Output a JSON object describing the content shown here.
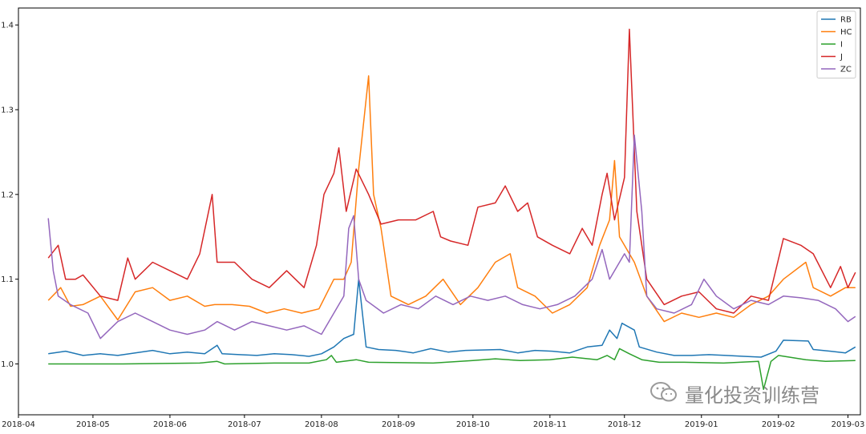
{
  "chart_data": {
    "type": "line",
    "title": "",
    "xlabel": "",
    "ylabel": "",
    "x_ticks": [
      "2018-04",
      "2018-05",
      "2018-06",
      "2018-07",
      "2018-08",
      "2018-09",
      "2018-10",
      "2018-11",
      "2018-12",
      "2019-01",
      "2019-02",
      "2019-03"
    ],
    "y_ticks": [
      "1.0",
      "1.1",
      "1.2",
      "1.3",
      "1.4"
    ],
    "xlim": [
      "2018-04-01",
      "2019-03-06"
    ],
    "ylim": [
      0.94,
      1.42
    ],
    "grid": false,
    "legend_position": "top-right",
    "series": [
      {
        "name": "RB",
        "color": "#1f77b4",
        "points": [
          [
            "2018-04-13",
            1.012
          ],
          [
            "2018-04-20",
            1.015
          ],
          [
            "2018-04-27",
            1.01
          ],
          [
            "2018-05-04",
            1.012
          ],
          [
            "2018-05-11",
            1.01
          ],
          [
            "2018-05-18",
            1.013
          ],
          [
            "2018-05-25",
            1.016
          ],
          [
            "2018-06-01",
            1.012
          ],
          [
            "2018-06-08",
            1.014
          ],
          [
            "2018-06-15",
            1.012
          ],
          [
            "2018-06-20",
            1.022
          ],
          [
            "2018-06-22",
            1.012
          ],
          [
            "2018-06-29",
            1.011
          ],
          [
            "2018-07-06",
            1.01
          ],
          [
            "2018-07-13",
            1.012
          ],
          [
            "2018-07-20",
            1.011
          ],
          [
            "2018-07-27",
            1.009
          ],
          [
            "2018-08-01",
            1.012
          ],
          [
            "2018-08-06",
            1.02
          ],
          [
            "2018-08-10",
            1.03
          ],
          [
            "2018-08-14",
            1.035
          ],
          [
            "2018-08-16",
            1.1
          ],
          [
            "2018-08-19",
            1.02
          ],
          [
            "2018-08-24",
            1.017
          ],
          [
            "2018-08-31",
            1.016
          ],
          [
            "2018-09-07",
            1.013
          ],
          [
            "2018-09-14",
            1.018
          ],
          [
            "2018-09-21",
            1.014
          ],
          [
            "2018-09-28",
            1.016
          ],
          [
            "2018-10-12",
            1.017
          ],
          [
            "2018-10-19",
            1.013
          ],
          [
            "2018-10-26",
            1.016
          ],
          [
            "2018-11-02",
            1.015
          ],
          [
            "2018-11-09",
            1.013
          ],
          [
            "2018-11-16",
            1.02
          ],
          [
            "2018-11-22",
            1.022
          ],
          [
            "2018-11-25",
            1.04
          ],
          [
            "2018-11-28",
            1.03
          ],
          [
            "2018-11-30",
            1.048
          ],
          [
            "2018-12-05",
            1.04
          ],
          [
            "2018-12-07",
            1.02
          ],
          [
            "2018-12-14",
            1.014
          ],
          [
            "2018-12-21",
            1.01
          ],
          [
            "2018-12-28",
            1.01
          ],
          [
            "2019-01-04",
            1.011
          ],
          [
            "2019-01-11",
            1.01
          ],
          [
            "2019-01-18",
            1.009
          ],
          [
            "2019-01-25",
            1.008
          ],
          [
            "2019-01-31",
            1.015
          ],
          [
            "2019-02-03",
            1.028
          ],
          [
            "2019-02-13",
            1.027
          ],
          [
            "2019-02-15",
            1.017
          ],
          [
            "2019-02-22",
            1.015
          ],
          [
            "2019-02-28",
            1.013
          ],
          [
            "2019-03-04",
            1.02
          ]
        ]
      },
      {
        "name": "HC",
        "color": "#ff7f0e",
        "points": [
          [
            "2018-04-13",
            1.075
          ],
          [
            "2018-04-18",
            1.09
          ],
          [
            "2018-04-22",
            1.068
          ],
          [
            "2018-04-27",
            1.07
          ],
          [
            "2018-05-04",
            1.08
          ],
          [
            "2018-05-11",
            1.052
          ],
          [
            "2018-05-18",
            1.085
          ],
          [
            "2018-05-25",
            1.09
          ],
          [
            "2018-06-01",
            1.075
          ],
          [
            "2018-06-08",
            1.08
          ],
          [
            "2018-06-15",
            1.068
          ],
          [
            "2018-06-19",
            1.07
          ],
          [
            "2018-06-26",
            1.07
          ],
          [
            "2018-07-03",
            1.068
          ],
          [
            "2018-07-10",
            1.06
          ],
          [
            "2018-07-17",
            1.065
          ],
          [
            "2018-07-24",
            1.06
          ],
          [
            "2018-07-31",
            1.065
          ],
          [
            "2018-08-06",
            1.1
          ],
          [
            "2018-08-10",
            1.1
          ],
          [
            "2018-08-13",
            1.12
          ],
          [
            "2018-08-16",
            1.23
          ],
          [
            "2018-08-20",
            1.34
          ],
          [
            "2018-08-22",
            1.2
          ],
          [
            "2018-08-25",
            1.16
          ],
          [
            "2018-08-29",
            1.08
          ],
          [
            "2018-09-05",
            1.07
          ],
          [
            "2018-09-12",
            1.08
          ],
          [
            "2018-09-19",
            1.1
          ],
          [
            "2018-09-26",
            1.07
          ],
          [
            "2018-10-03",
            1.09
          ],
          [
            "2018-10-10",
            1.12
          ],
          [
            "2018-10-16",
            1.13
          ],
          [
            "2018-10-19",
            1.09
          ],
          [
            "2018-10-26",
            1.08
          ],
          [
            "2018-11-02",
            1.06
          ],
          [
            "2018-11-09",
            1.07
          ],
          [
            "2018-11-16",
            1.09
          ],
          [
            "2018-11-21",
            1.14
          ],
          [
            "2018-11-25",
            1.17
          ],
          [
            "2018-11-27",
            1.24
          ],
          [
            "2018-11-29",
            1.15
          ],
          [
            "2018-12-05",
            1.12
          ],
          [
            "2018-12-10",
            1.08
          ],
          [
            "2018-12-17",
            1.05
          ],
          [
            "2018-12-24",
            1.06
          ],
          [
            "2018-12-31",
            1.055
          ],
          [
            "2019-01-07",
            1.06
          ],
          [
            "2019-01-14",
            1.055
          ],
          [
            "2019-01-21",
            1.07
          ],
          [
            "2019-01-28",
            1.08
          ],
          [
            "2019-02-03",
            1.1
          ],
          [
            "2019-02-12",
            1.12
          ],
          [
            "2019-02-15",
            1.09
          ],
          [
            "2019-02-22",
            1.08
          ],
          [
            "2019-02-28",
            1.09
          ],
          [
            "2019-03-04",
            1.09
          ]
        ]
      },
      {
        "name": "I",
        "color": "#2ca02c",
        "points": [
          [
            "2018-04-13",
            1.0
          ],
          [
            "2018-05-13",
            1.0
          ],
          [
            "2018-06-13",
            1.001
          ],
          [
            "2018-06-20",
            1.003
          ],
          [
            "2018-06-23",
            1.0
          ],
          [
            "2018-07-13",
            1.001
          ],
          [
            "2018-07-27",
            1.001
          ],
          [
            "2018-08-03",
            1.005
          ],
          [
            "2018-08-05",
            1.01
          ],
          [
            "2018-08-07",
            1.002
          ],
          [
            "2018-08-15",
            1.005
          ],
          [
            "2018-08-20",
            1.002
          ],
          [
            "2018-09-15",
            1.001
          ],
          [
            "2018-10-01",
            1.004
          ],
          [
            "2018-10-10",
            1.006
          ],
          [
            "2018-10-20",
            1.004
          ],
          [
            "2018-11-01",
            1.005
          ],
          [
            "2018-11-10",
            1.008
          ],
          [
            "2018-11-20",
            1.005
          ],
          [
            "2018-11-24",
            1.01
          ],
          [
            "2018-11-27",
            1.005
          ],
          [
            "2018-11-29",
            1.018
          ],
          [
            "2018-12-03",
            1.012
          ],
          [
            "2018-12-08",
            1.005
          ],
          [
            "2018-12-15",
            1.002
          ],
          [
            "2018-12-25",
            1.002
          ],
          [
            "2019-01-10",
            1.001
          ],
          [
            "2019-01-24",
            1.003
          ],
          [
            "2019-01-26",
            0.97
          ],
          [
            "2019-01-29",
            1.003
          ],
          [
            "2019-02-01",
            1.01
          ],
          [
            "2019-02-12",
            1.005
          ],
          [
            "2019-02-20",
            1.003
          ],
          [
            "2019-03-04",
            1.004
          ]
        ]
      },
      {
        "name": "J",
        "color": "#d62728",
        "points": [
          [
            "2018-04-13",
            1.125
          ],
          [
            "2018-04-17",
            1.14
          ],
          [
            "2018-04-20",
            1.1
          ],
          [
            "2018-04-24",
            1.1
          ],
          [
            "2018-04-27",
            1.105
          ],
          [
            "2018-05-04",
            1.08
          ],
          [
            "2018-05-11",
            1.075
          ],
          [
            "2018-05-15",
            1.125
          ],
          [
            "2018-05-18",
            1.1
          ],
          [
            "2018-05-25",
            1.12
          ],
          [
            "2018-06-01",
            1.11
          ],
          [
            "2018-06-08",
            1.1
          ],
          [
            "2018-06-13",
            1.13
          ],
          [
            "2018-06-18",
            1.2
          ],
          [
            "2018-06-20",
            1.12
          ],
          [
            "2018-06-27",
            1.12
          ],
          [
            "2018-07-04",
            1.1
          ],
          [
            "2018-07-11",
            1.09
          ],
          [
            "2018-07-18",
            1.11
          ],
          [
            "2018-07-25",
            1.09
          ],
          [
            "2018-07-30",
            1.14
          ],
          [
            "2018-08-02",
            1.2
          ],
          [
            "2018-08-06",
            1.225
          ],
          [
            "2018-08-08",
            1.255
          ],
          [
            "2018-08-11",
            1.18
          ],
          [
            "2018-08-15",
            1.23
          ],
          [
            "2018-08-20",
            1.2
          ],
          [
            "2018-08-25",
            1.165
          ],
          [
            "2018-09-01",
            1.17
          ],
          [
            "2018-09-08",
            1.17
          ],
          [
            "2018-09-15",
            1.18
          ],
          [
            "2018-09-18",
            1.15
          ],
          [
            "2018-09-22",
            1.145
          ],
          [
            "2018-09-29",
            1.14
          ],
          [
            "2018-10-03",
            1.185
          ],
          [
            "2018-10-10",
            1.19
          ],
          [
            "2018-10-14",
            1.21
          ],
          [
            "2018-10-19",
            1.18
          ],
          [
            "2018-10-23",
            1.19
          ],
          [
            "2018-10-27",
            1.15
          ],
          [
            "2018-11-02",
            1.14
          ],
          [
            "2018-11-09",
            1.13
          ],
          [
            "2018-11-14",
            1.16
          ],
          [
            "2018-11-18",
            1.14
          ],
          [
            "2018-11-22",
            1.2
          ],
          [
            "2018-11-24",
            1.225
          ],
          [
            "2018-11-27",
            1.17
          ],
          [
            "2018-12-01",
            1.22
          ],
          [
            "2018-12-03",
            1.395
          ],
          [
            "2018-12-06",
            1.18
          ],
          [
            "2018-12-10",
            1.1
          ],
          [
            "2018-12-17",
            1.07
          ],
          [
            "2018-12-24",
            1.08
          ],
          [
            "2018-12-31",
            1.085
          ],
          [
            "2019-01-07",
            1.065
          ],
          [
            "2019-01-14",
            1.06
          ],
          [
            "2019-01-21",
            1.08
          ],
          [
            "2019-01-28",
            1.075
          ],
          [
            "2019-02-03",
            1.148
          ],
          [
            "2019-02-10",
            1.14
          ],
          [
            "2019-02-15",
            1.13
          ],
          [
            "2019-02-22",
            1.09
          ],
          [
            "2019-02-26",
            1.115
          ],
          [
            "2019-03-01",
            1.09
          ],
          [
            "2019-03-04",
            1.108
          ]
        ]
      },
      {
        "name": "ZC",
        "color": "#9467bd",
        "points": [
          [
            "2018-04-13",
            1.172
          ],
          [
            "2018-04-15",
            1.11
          ],
          [
            "2018-04-17",
            1.08
          ],
          [
            "2018-04-22",
            1.07
          ],
          [
            "2018-04-29",
            1.06
          ],
          [
            "2018-05-04",
            1.03
          ],
          [
            "2018-05-11",
            1.05
          ],
          [
            "2018-05-18",
            1.06
          ],
          [
            "2018-05-25",
            1.05
          ],
          [
            "2018-06-01",
            1.04
          ],
          [
            "2018-06-08",
            1.035
          ],
          [
            "2018-06-15",
            1.04
          ],
          [
            "2018-06-20",
            1.05
          ],
          [
            "2018-06-27",
            1.04
          ],
          [
            "2018-07-04",
            1.05
          ],
          [
            "2018-07-11",
            1.045
          ],
          [
            "2018-07-18",
            1.04
          ],
          [
            "2018-07-25",
            1.045
          ],
          [
            "2018-08-01",
            1.035
          ],
          [
            "2018-08-06",
            1.06
          ],
          [
            "2018-08-10",
            1.08
          ],
          [
            "2018-08-12",
            1.16
          ],
          [
            "2018-08-14",
            1.175
          ],
          [
            "2018-08-16",
            1.1
          ],
          [
            "2018-08-19",
            1.075
          ],
          [
            "2018-08-26",
            1.06
          ],
          [
            "2018-09-02",
            1.07
          ],
          [
            "2018-09-09",
            1.065
          ],
          [
            "2018-09-16",
            1.08
          ],
          [
            "2018-09-23",
            1.07
          ],
          [
            "2018-09-30",
            1.08
          ],
          [
            "2018-10-07",
            1.075
          ],
          [
            "2018-10-14",
            1.08
          ],
          [
            "2018-10-21",
            1.07
          ],
          [
            "2018-10-28",
            1.065
          ],
          [
            "2018-11-04",
            1.07
          ],
          [
            "2018-11-11",
            1.08
          ],
          [
            "2018-11-18",
            1.1
          ],
          [
            "2018-11-22",
            1.135
          ],
          [
            "2018-11-25",
            1.1
          ],
          [
            "2018-12-01",
            1.13
          ],
          [
            "2018-12-03",
            1.12
          ],
          [
            "2018-12-05",
            1.27
          ],
          [
            "2018-12-08",
            1.18
          ],
          [
            "2018-12-10",
            1.08
          ],
          [
            "2018-12-14",
            1.065
          ],
          [
            "2018-12-21",
            1.06
          ],
          [
            "2018-12-28",
            1.07
          ],
          [
            "2019-01-02",
            1.1
          ],
          [
            "2019-01-07",
            1.08
          ],
          [
            "2019-01-14",
            1.065
          ],
          [
            "2019-01-21",
            1.075
          ],
          [
            "2019-01-28",
            1.07
          ],
          [
            "2019-02-03",
            1.08
          ],
          [
            "2019-02-10",
            1.078
          ],
          [
            "2019-02-17",
            1.075
          ],
          [
            "2019-02-24",
            1.065
          ],
          [
            "2019-03-01",
            1.05
          ],
          [
            "2019-03-04",
            1.056
          ]
        ]
      }
    ]
  },
  "watermark": {
    "text": "量化投资训练营",
    "icon": "wechat-icon"
  }
}
